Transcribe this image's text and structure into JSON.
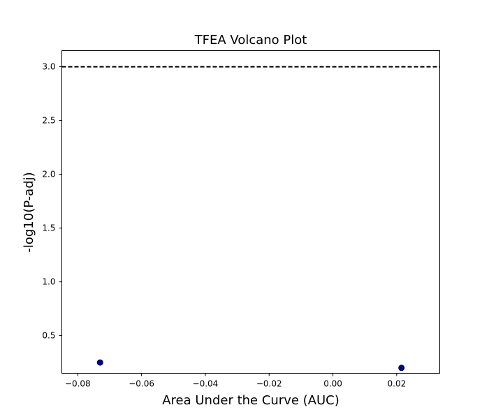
{
  "chart_data": {
    "type": "scatter",
    "title": "TFEA Volcano Plot",
    "xlabel": "Area Under the Curve (AUC)",
    "ylabel": "-log10(P-adj)",
    "xlim": [
      -0.085,
      0.0335
    ],
    "ylim": [
      0.15,
      3.15
    ],
    "x_ticks": [
      -0.08,
      -0.06,
      -0.04,
      -0.02,
      0.0,
      0.02
    ],
    "x_tick_labels": [
      "−0.08",
      "−0.06",
      "−0.04",
      "−0.02",
      "0.00",
      "0.02"
    ],
    "y_ticks": [
      0.5,
      1.0,
      1.5,
      2.0,
      2.5,
      3.0
    ],
    "y_tick_labels": [
      "0.5",
      "1.0",
      "1.5",
      "2.0",
      "2.5",
      "3.0"
    ],
    "grid": false,
    "series": [
      {
        "x": [
          -0.073,
          0.0215
        ],
        "y": [
          0.25,
          0.2
        ],
        "color": "#000080"
      }
    ],
    "threshold_line": {
      "y": 3.0,
      "style": "dashed",
      "color": "#000000"
    }
  }
}
